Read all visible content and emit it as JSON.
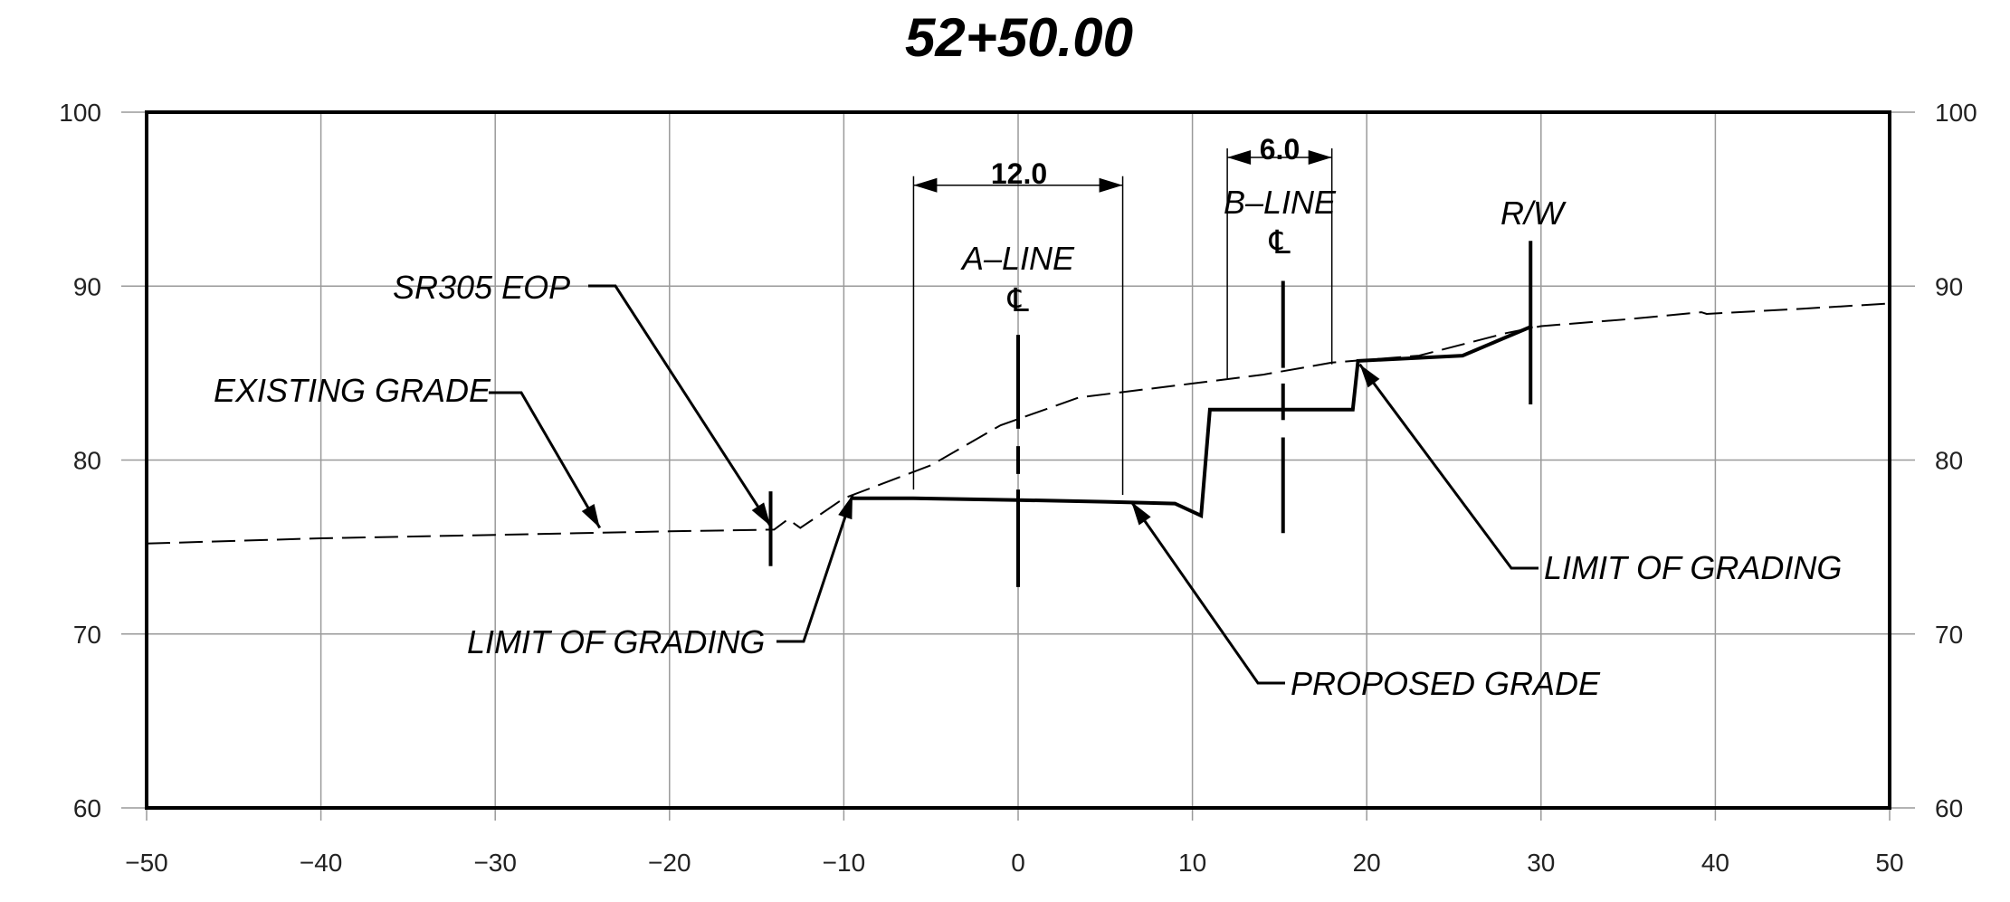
{
  "chart_data": {
    "type": "line",
    "title": "52+50.00",
    "xlim": [
      -50,
      50
    ],
    "ylim": [
      60,
      100
    ],
    "x_ticks": [
      "−50",
      "−40",
      "−30",
      "−20",
      "−10",
      "0",
      "10",
      "20",
      "30",
      "40",
      "50"
    ],
    "y_ticks": [
      "60",
      "70",
      "80",
      "90",
      "100"
    ],
    "grid": true,
    "series": [
      {
        "key": "existing",
        "style": "dashed",
        "points": [
          [
            -50,
            75.2
          ],
          [
            -40,
            75.5
          ],
          [
            -30,
            75.7
          ],
          [
            -20,
            75.9
          ],
          [
            -14,
            76.0
          ],
          [
            -13.2,
            76.6
          ],
          [
            -12.5,
            76.1
          ],
          [
            -11.6,
            76.7
          ],
          [
            -10,
            77.8
          ],
          [
            -5,
            79.7
          ],
          [
            -1,
            82.0
          ],
          [
            3.5,
            83.6
          ],
          [
            10,
            84.4
          ],
          [
            14,
            84.9
          ],
          [
            18,
            85.6
          ],
          [
            23,
            86.0
          ],
          [
            28,
            87.3
          ],
          [
            30,
            87.7
          ],
          [
            35,
            88.1
          ],
          [
            39.2,
            88.5
          ],
          [
            39.5,
            88.4
          ],
          [
            45,
            88.7
          ],
          [
            50,
            89.0
          ]
        ]
      },
      {
        "key": "proposed",
        "style": "solid",
        "points": [
          [
            -9.5,
            77.8
          ],
          [
            -6,
            77.8
          ],
          [
            0,
            77.7
          ],
          [
            5,
            77.6
          ],
          [
            9,
            77.5
          ],
          [
            10.5,
            76.8
          ],
          [
            11,
            82.9
          ],
          [
            19.2,
            82.9
          ],
          [
            19.5,
            85.7
          ],
          [
            25.5,
            86.0
          ],
          [
            29.5,
            87.7
          ]
        ]
      }
    ]
  },
  "annotations": {
    "existing_grade": "EXISTING GRADE",
    "sr305_eop": "SR305 EOP",
    "limit_of_grading_left": "LIMIT OF GRADING",
    "limit_of_grading_right": "LIMIT OF GRADING",
    "proposed_grade": "PROPOSED GRADE",
    "a_line": "A–LINE",
    "b_line": "B–LINE",
    "centerline_symbol": "℄",
    "right_of_way": "R/W",
    "dim_a": "12.0",
    "dim_b": "6.0"
  }
}
